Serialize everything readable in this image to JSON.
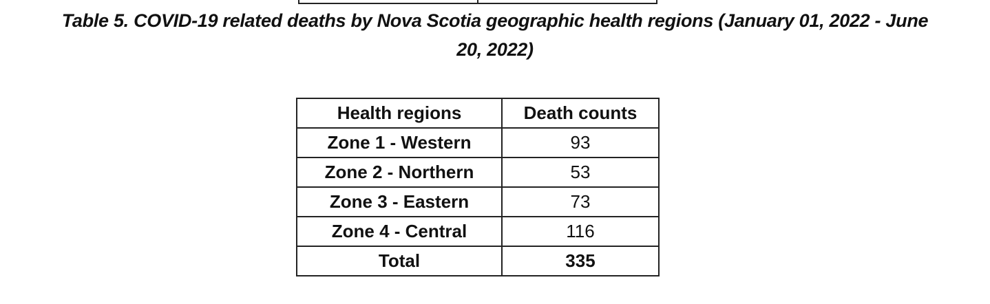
{
  "caption": {
    "line1": "Table 5. COVID-19 related deaths by Nova Scotia geographic health regions (January 01, 2022 - June",
    "line2": "20, 2022)"
  },
  "table": {
    "headers": [
      "Health regions",
      "Death counts"
    ],
    "rows": [
      {
        "region": "Zone 1 - Western",
        "count": "93"
      },
      {
        "region": "Zone 2 - Northern",
        "count": "53"
      },
      {
        "region": "Zone 3 - Eastern",
        "count": "73"
      },
      {
        "region": "Zone 4 - Central",
        "count": "116"
      }
    ],
    "total": {
      "region": "Total",
      "count": "335"
    }
  }
}
